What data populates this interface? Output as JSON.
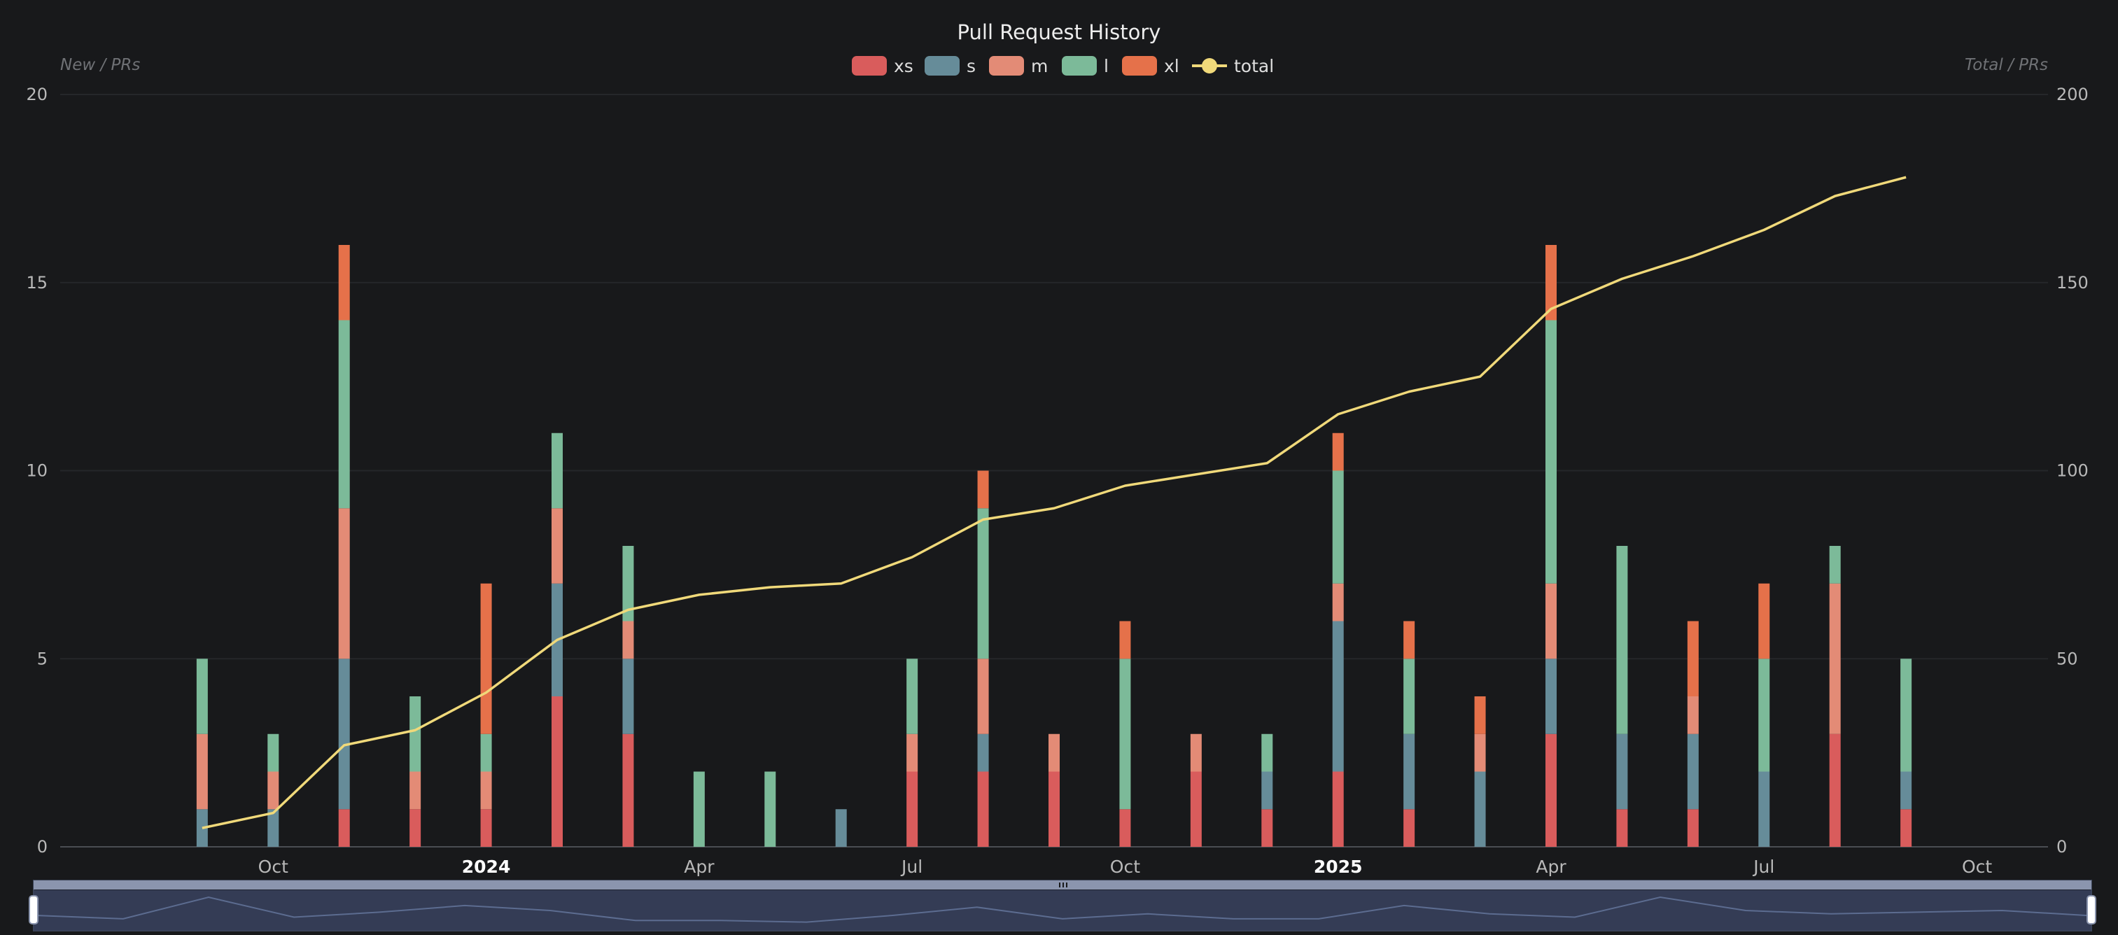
{
  "chart_data": {
    "type": "bar",
    "title": "Pull Request History",
    "left_axis_label": "New / PRs",
    "right_axis_label": "Total / PRs",
    "left_ylim": [
      0,
      20
    ],
    "left_ticks": [
      0,
      5,
      10,
      15,
      20
    ],
    "right_ylim": [
      0,
      200
    ],
    "right_ticks": [
      0,
      50,
      100,
      150,
      200
    ],
    "grid": true,
    "legend_position": "top-center",
    "x_ticks": [
      {
        "label": "Oct",
        "month": "2023-10",
        "bold": false
      },
      {
        "label": "2024",
        "month": "2024-01",
        "bold": true
      },
      {
        "label": "Apr",
        "month": "2024-04",
        "bold": false
      },
      {
        "label": "Jul",
        "month": "2024-07",
        "bold": false
      },
      {
        "label": "Oct",
        "month": "2024-10",
        "bold": false
      },
      {
        "label": "2025",
        "month": "2025-01",
        "bold": true
      },
      {
        "label": "Apr",
        "month": "2025-04",
        "bold": false
      },
      {
        "label": "Jul",
        "month": "2025-07",
        "bold": false
      },
      {
        "label": "Oct",
        "month": "2025-10",
        "bold": false
      }
    ],
    "x_range": [
      "2023-07",
      "2025-11"
    ],
    "categories": [
      "2023-09",
      "2023-10",
      "2023-11",
      "2023-12",
      "2024-01",
      "2024-02",
      "2024-03",
      "2024-04",
      "2024-05",
      "2024-06",
      "2024-07",
      "2024-08",
      "2024-09",
      "2024-10",
      "2024-11",
      "2024-12",
      "2025-01",
      "2025-02",
      "2025-03",
      "2025-04",
      "2025-05",
      "2025-06",
      "2025-07",
      "2025-08",
      "2025-09"
    ],
    "series": [
      {
        "name": "xs",
        "color": "#d95c5c",
        "values": [
          0,
          0,
          1,
          1,
          1,
          4,
          3,
          0,
          0,
          0,
          2,
          2,
          2,
          1,
          2,
          1,
          2,
          1,
          0,
          3,
          1,
          1,
          0,
          3,
          1
        ]
      },
      {
        "name": "s",
        "color": "#668c99",
        "values": [
          1,
          1,
          4,
          0,
          0,
          3,
          2,
          0,
          0,
          1,
          0,
          1,
          0,
          0,
          0,
          1,
          4,
          2,
          2,
          2,
          2,
          2,
          2,
          0,
          1
        ]
      },
      {
        "name": "m",
        "color": "#e38b76",
        "values": [
          2,
          1,
          4,
          1,
          1,
          2,
          1,
          0,
          0,
          0,
          1,
          2,
          1,
          0,
          1,
          0,
          1,
          0,
          1,
          2,
          0,
          1,
          0,
          4,
          0
        ]
      },
      {
        "name": "l",
        "color": "#7cba99",
        "values": [
          2,
          1,
          5,
          2,
          1,
          2,
          2,
          2,
          2,
          0,
          2,
          4,
          0,
          4,
          0,
          1,
          3,
          2,
          0,
          7,
          5,
          0,
          3,
          1,
          3
        ]
      },
      {
        "name": "xl",
        "color": "#e5714a",
        "values": [
          0,
          0,
          2,
          0,
          4,
          0,
          0,
          0,
          0,
          0,
          0,
          1,
          0,
          1,
          0,
          0,
          1,
          1,
          1,
          2,
          0,
          2,
          2,
          0,
          0
        ]
      }
    ],
    "line_series": {
      "name": "total",
      "color": "#f0d97a",
      "values": [
        5,
        9,
        27,
        31,
        41,
        55,
        63,
        67,
        69,
        70,
        77,
        87,
        90,
        96,
        99,
        102,
        115,
        121,
        125,
        143,
        151,
        157,
        164,
        173,
        178
      ]
    },
    "zoom_slider": {
      "start_percent": 0,
      "end_percent": 100
    }
  }
}
